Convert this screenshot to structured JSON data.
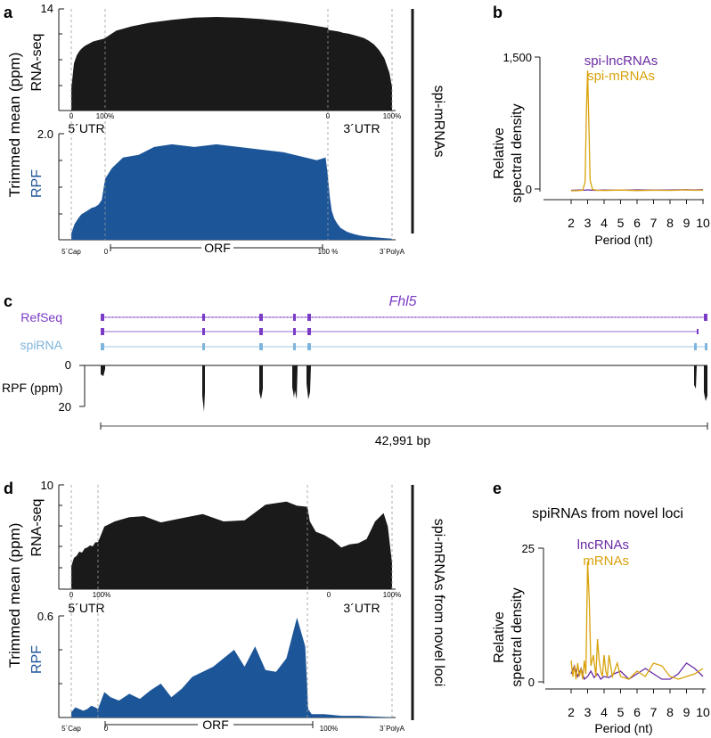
{
  "panel_labels": {
    "a": "a",
    "b": "b",
    "c": "c",
    "d": "d",
    "e": "e"
  },
  "colors": {
    "black": "#1a1a1a",
    "rpf_blue": "#1c5699",
    "lnc_purple": "#6a2aa1",
    "mrna_gold": "#d9a20b",
    "spirna_lightblue": "#7fb5dc",
    "refseq_purple": "#7a3cc6",
    "guide": "#999999"
  },
  "common": {
    "ylabel_trimmed": "Trimmed mean (ppm)",
    "rnaseq": "RNA-seq",
    "rpf": "RPF",
    "utr5": "5´UTR",
    "utr3": "3´UTR",
    "orf": "ORF",
    "cap": "5´Cap",
    "polya": "3´PolyA",
    "t0": "0",
    "t100": "100%",
    "t100b": "100 %"
  },
  "panel_a": {
    "side_label": "spi-mRNAs",
    "rnaseq_ymax": "14",
    "rpf_ymax": "2.0"
  },
  "panel_d": {
    "side_label": "spi-mRNAs from novel loci",
    "rnaseq_ymax": "10",
    "rpf_ymax": "0.6"
  },
  "panel_c": {
    "gene": "Fhl5",
    "refseq": "RefSeq",
    "spirna": "spiRNA",
    "rpf_label": "RPF (ppm)",
    "y0": "0",
    "y20": "20",
    "length": "42,991 bp"
  },
  "chart_data": [
    {
      "id": "b",
      "type": "line",
      "title": "",
      "xlabel": "Period (nt)",
      "ylabel": "Relative spectral density",
      "xlim": [
        2,
        10
      ],
      "ylim": [
        0,
        1500
      ],
      "x_ticks": [
        "2",
        "3",
        "4",
        "5",
        "6",
        "7",
        "8",
        "9",
        "10"
      ],
      "y_ticks": [
        "0",
        "1,500"
      ],
      "series": [
        {
          "name": "spi-lncRNAs",
          "color": "#6a2aa1",
          "x": [
            2,
            2.5,
            2.8,
            3,
            3.2,
            3.5,
            4,
            5,
            6,
            7,
            8,
            9,
            9.5,
            10
          ],
          "y": [
            5,
            8,
            6,
            10,
            7,
            5,
            8,
            6,
            10,
            7,
            8,
            12,
            9,
            14
          ]
        },
        {
          "name": "spi-mRNAs",
          "color": "#d9a20b",
          "x": [
            2,
            2.4,
            2.7,
            2.85,
            2.93,
            3,
            3.07,
            3.15,
            3.3,
            3.6,
            4,
            5,
            6,
            7,
            8,
            9,
            9.5,
            10
          ],
          "y": [
            0,
            2,
            5,
            100,
            900,
            1350,
            800,
            120,
            15,
            5,
            3,
            8,
            2,
            6,
            4,
            10,
            5,
            8
          ]
        }
      ]
    },
    {
      "id": "e",
      "type": "line",
      "title": "spiRNAs from novel loci",
      "xlabel": "Period (nt)",
      "ylabel": "Relative spectral density",
      "xlim": [
        2,
        10
      ],
      "ylim": [
        0,
        25
      ],
      "x_ticks": [
        "2",
        "3",
        "4",
        "5",
        "6",
        "7",
        "8",
        "9",
        "10"
      ],
      "y_ticks": [
        "0",
        "25"
      ],
      "series": [
        {
          "name": "lncRNAs",
          "color": "#6a2aa1",
          "x": [
            2,
            2.2,
            2.4,
            2.6,
            2.8,
            3,
            3.2,
            3.4,
            3.6,
            3.8,
            4,
            4.3,
            4.6,
            5,
            5.5,
            6,
            6.5,
            7,
            7.5,
            8,
            8.5,
            9,
            9.5,
            10
          ],
          "y": [
            1.5,
            3,
            1,
            2.5,
            0.5,
            1,
            2,
            0.8,
            1.5,
            0.5,
            1,
            0.8,
            1.5,
            2,
            0.5,
            1.5,
            2.5,
            1.5,
            0.5,
            0.5,
            1.5,
            3.5,
            2.5,
            1
          ]
        },
        {
          "name": "mRNAs",
          "color": "#d9a20b",
          "x": [
            2,
            2.1,
            2.2,
            2.3,
            2.4,
            2.5,
            2.6,
            2.7,
            2.8,
            2.9,
            3,
            3.1,
            3.2,
            3.35,
            3.5,
            3.6,
            3.7,
            3.8,
            3.9,
            4,
            4.1,
            4.2,
            4.3,
            4.5,
            4.8,
            5,
            5.5,
            6,
            6.5,
            7,
            7.5,
            8,
            8.5,
            9,
            9.5,
            10
          ],
          "y": [
            4,
            1,
            3,
            0.5,
            3.5,
            1,
            2.5,
            0.5,
            4,
            1.5,
            22.5,
            15,
            3,
            5,
            1,
            8,
            4,
            2,
            1,
            5,
            2,
            1,
            5,
            1,
            3.5,
            1,
            0.5,
            2,
            1,
            3.5,
            3,
            1,
            0.5,
            1,
            1.5,
            2.5
          ]
        }
      ]
    },
    {
      "id": "a_rnaseq",
      "type": "area",
      "title": "RNA-seq spi-mRNAs",
      "ylim": [
        0,
        14
      ],
      "x": [
        0,
        0.08,
        0.16,
        0.24,
        0.32,
        0.4,
        0.48,
        0.56,
        0.64,
        0.72,
        0.8,
        0.88,
        0.96,
        1,
        1.05,
        1.12,
        1.2,
        1.3,
        1.4,
        1.5,
        1.6,
        1.7,
        1.8,
        1.9,
        2,
        2.01,
        2.08,
        2.16,
        2.24,
        2.32,
        2.4,
        2.48,
        2.56,
        2.64,
        2.72,
        2.8,
        2.88,
        2.96,
        3
      ],
      "y": [
        3,
        6.5,
        7.6,
        8.2,
        8.6,
        8.9,
        9.1,
        9.3,
        9.5,
        9.6,
        9.7,
        9.8,
        9.9,
        10,
        11,
        11.6,
        12.1,
        12.5,
        12.8,
        12.9,
        12.8,
        12.6,
        12.3,
        11.9,
        11.4,
        11.1,
        11,
        10.9,
        10.7,
        10.6,
        10.4,
        10.2,
        10,
        9.6,
        9.1,
        8.3,
        7.2,
        5.2,
        3.2
      ]
    },
    {
      "id": "a_rpf",
      "type": "area",
      "title": "RPF spi-mRNAs",
      "ylim": [
        0,
        2.0
      ],
      "x": [
        0,
        0.1,
        0.2,
        0.3,
        0.4,
        0.5,
        0.6,
        0.7,
        0.8,
        0.9,
        1,
        1.03,
        1.08,
        1.15,
        1.22,
        1.3,
        1.4,
        1.5,
        1.6,
        1.7,
        1.8,
        1.9,
        1.95,
        1.99,
        2,
        2.03,
        2.06,
        2.1,
        2.15,
        2.2,
        2.3,
        2.4,
        2.5,
        2.6,
        2.7,
        2.8,
        2.9,
        3
      ],
      "y": [
        0.12,
        0.3,
        0.4,
        0.48,
        0.52,
        0.56,
        0.6,
        0.62,
        0.66,
        0.75,
        1.15,
        1.35,
        1.55,
        1.6,
        1.75,
        1.8,
        1.75,
        1.8,
        1.75,
        1.7,
        1.65,
        1.55,
        1.5,
        1.55,
        1.2,
        0.8,
        0.55,
        0.4,
        0.3,
        0.22,
        0.15,
        0.11,
        0.08,
        0.06,
        0.05,
        0.04,
        0.03,
        0.02
      ]
    },
    {
      "id": "d_rnaseq",
      "type": "area",
      "title": "RNA-seq spi-mRNAs from novel loci",
      "ylim": [
        0,
        10
      ],
      "x": [
        0,
        0.1,
        0.2,
        0.3,
        0.4,
        0.5,
        0.6,
        0.7,
        0.8,
        0.9,
        1,
        1.03,
        1.08,
        1.15,
        1.22,
        1.3,
        1.4,
        1.5,
        1.6,
        1.7,
        1.8,
        1.9,
        1.95,
        2,
        2.03,
        2.1,
        2.2,
        2.3,
        2.4,
        2.5,
        2.6,
        2.7,
        2.8,
        2.9,
        2.95,
        3
      ],
      "y": [
        2.2,
        3,
        3.2,
        3.6,
        3.5,
        3.9,
        4,
        4.2,
        4.1,
        4.5,
        4.5,
        6,
        6.5,
        6.9,
        7,
        6.4,
        6.8,
        7.2,
        6.5,
        6.6,
        8.1,
        8.4,
        8,
        7.9,
        6.5,
        5.5,
        5.2,
        4.7,
        4,
        4.3,
        4.4,
        4.8,
        6.5,
        7.3,
        6,
        2.5
      ]
    },
    {
      "id": "d_rpf",
      "type": "area",
      "title": "RPF spi-mRNAs from novel loci",
      "ylim": [
        0,
        0.6
      ],
      "x": [
        0,
        0.15,
        0.3,
        0.45,
        0.6,
        0.75,
        0.9,
        1,
        1.03,
        1.06,
        1.1,
        1.15,
        1.2,
        1.25,
        1.3,
        1.35,
        1.4,
        1.45,
        1.5,
        1.55,
        1.6,
        1.65,
        1.7,
        1.75,
        1.8,
        1.85,
        1.9,
        1.95,
        1.99,
        2.01,
        2.05,
        2.2,
        2.4,
        2.6,
        2.8,
        3
      ],
      "y": [
        0.03,
        0.06,
        0.05,
        0.04,
        0.05,
        0.07,
        0.06,
        0.05,
        0.15,
        0.12,
        0.1,
        0.14,
        0.11,
        0.16,
        0.2,
        0.12,
        0.17,
        0.24,
        0.27,
        0.3,
        0.35,
        0.4,
        0.3,
        0.42,
        0.28,
        0.27,
        0.35,
        0.59,
        0.42,
        0.05,
        0.02,
        0.02,
        0.01,
        0.01,
        0.005,
        0.002
      ]
    }
  ]
}
